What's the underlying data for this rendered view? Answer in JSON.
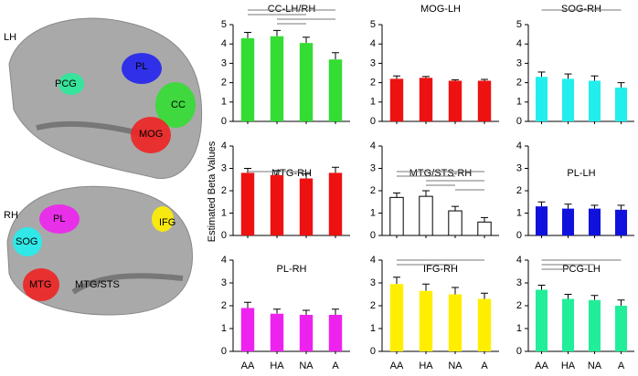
{
  "y_label": "Estimated Beta Values",
  "categories": [
    "AA",
    "HA",
    "NA",
    "A"
  ],
  "brain": {
    "left": {
      "hemisphere": "LH",
      "regions": [
        "PCG",
        "PL",
        "CC",
        "MOG"
      ]
    },
    "right": {
      "hemisphere": "RH",
      "regions": [
        "PL",
        "SOG",
        "IFG",
        "MTG",
        "MTG/STS"
      ]
    }
  },
  "chart_data": [
    {
      "type": "bar",
      "title": "CC-LH/RH",
      "values": [
        4.3,
        4.4,
        4.05,
        3.2
      ],
      "errors": [
        0.3,
        0.3,
        0.3,
        0.35
      ],
      "color": "#33dd33",
      "ylim": [
        0,
        5
      ],
      "yticks": [
        0,
        1,
        2,
        3,
        4,
        5
      ]
    },
    {
      "type": "bar",
      "title": "MOG-LH",
      "values": [
        2.2,
        2.25,
        2.1,
        2.1
      ],
      "errors": [
        0.15,
        0.07,
        0.05,
        0.07
      ],
      "color": "#ee1111",
      "ylim": [
        0,
        5
      ],
      "yticks": [
        0,
        1,
        2,
        3,
        4,
        5
      ]
    },
    {
      "type": "bar",
      "title": "SOG-RH",
      "values": [
        2.3,
        2.2,
        2.1,
        1.75
      ],
      "errors": [
        0.25,
        0.25,
        0.25,
        0.25
      ],
      "color": "#22eeee",
      "ylim": [
        0,
        5
      ],
      "yticks": [
        0,
        1,
        2,
        3,
        4,
        5
      ]
    },
    {
      "type": "bar",
      "title": "MTG-RH",
      "values": [
        2.8,
        2.7,
        2.55,
        2.8
      ],
      "errors": [
        0.2,
        0.2,
        0.2,
        0.25
      ],
      "color": "#ee1111",
      "ylim": [
        0,
        4
      ],
      "yticks": [
        0,
        1,
        2,
        3,
        4
      ]
    },
    {
      "type": "bar",
      "title": "MTG/STS-RH",
      "values": [
        1.7,
        1.75,
        1.1,
        0.6
      ],
      "errors": [
        0.2,
        0.25,
        0.2,
        0.2
      ],
      "color": "#ffffff",
      "ylim": [
        0,
        4
      ],
      "yticks": [
        0,
        1,
        2,
        3,
        4
      ]
    },
    {
      "type": "bar",
      "title": "PL-LH",
      "values": [
        1.3,
        1.2,
        1.2,
        1.15
      ],
      "errors": [
        0.2,
        0.2,
        0.15,
        0.2
      ],
      "color": "#1111dd",
      "ylim": [
        0,
        4
      ],
      "yticks": [
        0,
        1,
        2,
        3,
        4
      ]
    },
    {
      "type": "bar",
      "title": "PL-RH",
      "values": [
        1.9,
        1.65,
        1.6,
        1.6
      ],
      "errors": [
        0.25,
        0.2,
        0.2,
        0.25
      ],
      "color": "#ee22ee",
      "ylim": [
        0,
        4
      ],
      "yticks": [
        0,
        1,
        2,
        3,
        4
      ]
    },
    {
      "type": "bar",
      "title": "IFG-RH",
      "values": [
        2.95,
        2.65,
        2.5,
        2.3
      ],
      "errors": [
        0.3,
        0.3,
        0.3,
        0.25
      ],
      "color": "#ffee00",
      "ylim": [
        0,
        4
      ],
      "yticks": [
        0,
        1,
        2,
        3,
        4
      ]
    },
    {
      "type": "bar",
      "title": "PCG-LH",
      "values": [
        2.7,
        2.3,
        2.25,
        2.0
      ],
      "errors": [
        0.2,
        0.2,
        0.2,
        0.25
      ],
      "color": "#22ee99",
      "ylim": [
        0,
        4
      ],
      "yticks": [
        0,
        1,
        2,
        3,
        4
      ]
    }
  ]
}
